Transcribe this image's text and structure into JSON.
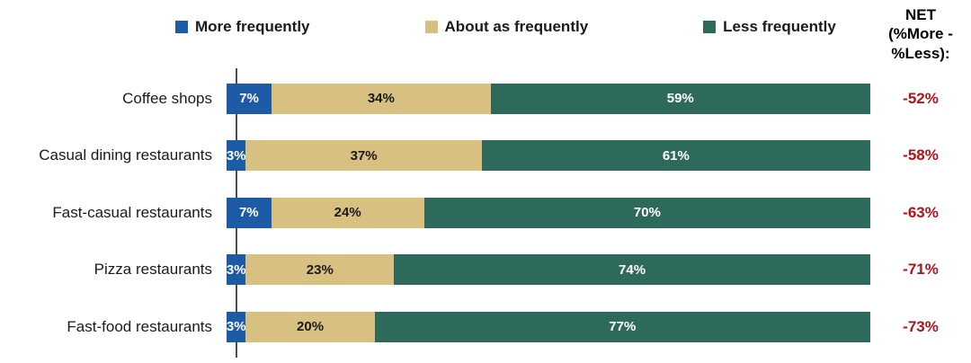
{
  "chart_data": {
    "type": "bar",
    "orientation": "horizontal",
    "stacked": true,
    "grid": false,
    "legend_position": "top",
    "xlim": [
      0,
      100
    ],
    "value_suffix": "%",
    "categories": [
      "Coffee shops",
      "Casual dining restaurants",
      "Fast-casual restaurants",
      "Pizza restaurants",
      "Fast-food restaurants"
    ],
    "series": [
      {
        "name": "More frequently",
        "color": "#1d5ba6",
        "label_color": "#ffffff",
        "values": [
          7,
          3,
          7,
          3,
          3
        ]
      },
      {
        "name": "About as frequently",
        "color": "#d7c080",
        "label_color": "#1a1a1a",
        "values": [
          34,
          37,
          24,
          23,
          20
        ]
      },
      {
        "name": "Less frequently",
        "color": "#2d6a5c",
        "label_color": "#ffffff",
        "values": [
          59,
          61,
          70,
          74,
          77
        ]
      }
    ],
    "net": {
      "label": "NET\n(%More -\n%Less):",
      "color": "#b01218",
      "values": [
        "-52%",
        "-58%",
        "-63%",
        "-71%",
        "-73%"
      ]
    }
  }
}
